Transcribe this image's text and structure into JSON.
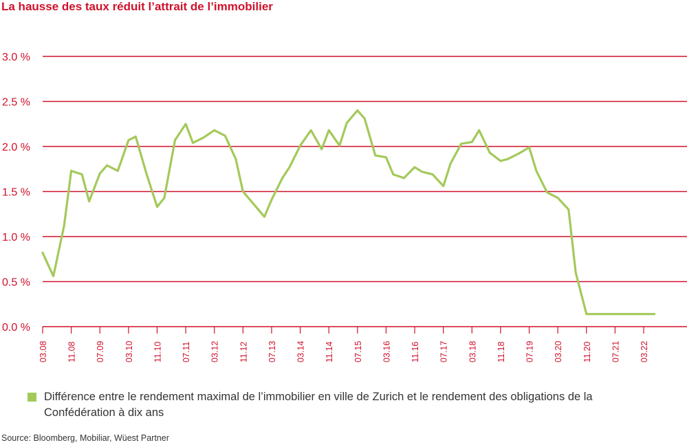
{
  "title": "La hausse des taux réduit l’attrait de l’immobilier",
  "source": "Source: Bloomberg, Mobiliar, Wüest Partner",
  "colors": {
    "accent": "#d0112b",
    "series": "#a3c95a",
    "text": "#333333"
  },
  "chart_data": {
    "type": "line",
    "title": "La hausse des taux réduit l’attrait de l’immobilier",
    "xlabel": "",
    "ylabel": "",
    "ylim": [
      0,
      3.0
    ],
    "y_ticks": [
      "0.0 %",
      "0.5 %",
      "1.0 %",
      "1.5 %",
      "2.0 %",
      "2.5 %",
      "3.0 %"
    ],
    "x_ticks": [
      "03.08",
      "11.08",
      "07.09",
      "03.10",
      "11.10",
      "07.11",
      "03.12",
      "11.12",
      "07.13",
      "03.14",
      "11.14",
      "07.15",
      "03.16",
      "11.16",
      "07.17",
      "03.18",
      "11.18",
      "07.19",
      "03.20",
      "11.20",
      "07.21",
      "03.22"
    ],
    "grid": true,
    "legend_position": "bottom",
    "series": [
      {
        "name": "Différence entre le rendement maximal de l’immobilier en ville de Zurich et le rendement des obligations de la Confédération à dix ans",
        "color": "#a3c95a",
        "x": [
          "03.08",
          "06.08",
          "09.08",
          "11.08",
          "02.09",
          "04.09",
          "07.09",
          "09.09",
          "12.09",
          "03.10",
          "05.10",
          "08.10",
          "11.10",
          "01.11",
          "04.11",
          "07.11",
          "09.11",
          "12.11",
          "03.12",
          "06.12",
          "09.12",
          "11.12",
          "02.13",
          "05.13",
          "07.13",
          "10.13",
          "12.13",
          "03.14",
          "06.14",
          "09.14",
          "11.14",
          "02.15",
          "04.15",
          "07.15",
          "09.15",
          "12.15",
          "03.16",
          "05.16",
          "08.16",
          "11.16",
          "01.17",
          "04.17",
          "07.17",
          "09.17",
          "12.17",
          "03.18",
          "05.18",
          "08.18",
          "11.18",
          "01.19",
          "04.19",
          "07.19",
          "09.19",
          "12.19",
          "03.20",
          "06.20",
          "08.20",
          "11.20",
          "02.21",
          "05.21",
          "07.21",
          "10.21",
          "01.22",
          "03.22",
          "06.22"
        ],
        "values": [
          0.82,
          0.56,
          1.12,
          1.73,
          1.69,
          1.39,
          1.7,
          1.79,
          1.73,
          2.07,
          2.11,
          1.7,
          1.33,
          1.43,
          2.07,
          2.25,
          2.04,
          2.1,
          2.18,
          2.12,
          1.86,
          1.5,
          1.36,
          1.22,
          1.41,
          1.65,
          1.77,
          2.01,
          2.18,
          1.97,
          2.18,
          2.01,
          2.26,
          2.4,
          2.31,
          1.9,
          1.88,
          1.69,
          1.65,
          1.77,
          1.72,
          1.69,
          1.56,
          1.81,
          2.03,
          2.05,
          2.18,
          1.93,
          1.84,
          1.86,
          1.92,
          1.99,
          1.73,
          1.49,
          1.43,
          1.3,
          0.6,
          0.14,
          0.14,
          0.14,
          0.14,
          0.14,
          0.14,
          0.14,
          0.14
        ]
      }
    ]
  }
}
